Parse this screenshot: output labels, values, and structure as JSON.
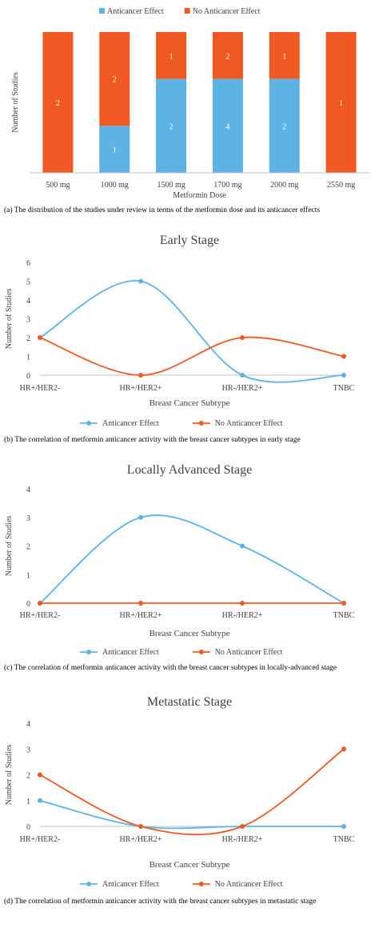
{
  "colors": {
    "anticancer": "#5DB4E4",
    "no_anticancer": "#F05A22",
    "axis": "#BFBFBF",
    "text": "#404040"
  },
  "chart_data": [
    {
      "type": "bar",
      "stacked": true,
      "legend_position": "top",
      "xlabel": "Metformin Dose",
      "ylabel": "Number of Studies",
      "categories": [
        "500 mg",
        "1000 mg",
        "1500 mg",
        "1700 mg",
        "2000 mg",
        "2550 mg"
      ],
      "series": [
        {
          "name": "Anticancer Effect",
          "values": [
            0,
            1,
            2,
            4,
            2,
            0
          ]
        },
        {
          "name": "No Anticancer Effect",
          "values": [
            2,
            2,
            1,
            2,
            1,
            1
          ]
        }
      ],
      "caption": "(a) The distribution of the studies under review in terms of the metformin dose and its anticancer effects"
    },
    {
      "type": "line",
      "smooth": true,
      "title": "Early Stage",
      "xlabel": "Breast Cancer Subtype",
      "ylabel": "Number of Studies",
      "ylim": [
        0,
        6
      ],
      "yticks": [
        0,
        1,
        2,
        3,
        4,
        5,
        6
      ],
      "grid": false,
      "legend_position": "bottom",
      "categories": [
        "HR+/HER2-",
        "HR+/HER2+",
        "HR-/HER2+",
        "TNBC"
      ],
      "series": [
        {
          "name": "Anticancer Effect",
          "values": [
            2,
            5,
            0,
            0
          ]
        },
        {
          "name": "No Anticancer Effect",
          "values": [
            2,
            0,
            2,
            1
          ]
        }
      ],
      "caption": "(b) The correlation of metformin anticancer activity with the breast cancer subtypes in early stage"
    },
    {
      "type": "line",
      "smooth": true,
      "title": "Locally Advanced Stage",
      "xlabel": "Breast Cancer Subtype",
      "ylabel": "Number of Studies",
      "ylim": [
        0,
        4
      ],
      "yticks": [
        0,
        1,
        2,
        3,
        4
      ],
      "grid": false,
      "legend_position": "bottom",
      "categories": [
        "HR+/HER2-",
        "HR+/HER2+",
        "HR-/HER2+",
        "TNBC"
      ],
      "series": [
        {
          "name": "Anticancer Effect",
          "values": [
            0,
            3,
            2,
            0
          ]
        },
        {
          "name": "No Anticancer Effect",
          "values": [
            0,
            0,
            0,
            0
          ]
        }
      ],
      "caption": "(c) The correlation of metformin anticancer activity with the breast cancer subtypes in locally-advanced stage"
    },
    {
      "type": "line",
      "smooth": true,
      "title": "Metastatic Stage",
      "xlabel": "Breast Cancer Subtype",
      "ylabel": "Number of Studies",
      "ylim": [
        0,
        4
      ],
      "yticks": [
        0,
        1,
        2,
        3,
        4
      ],
      "grid": false,
      "legend_position": "bottom",
      "categories": [
        "HR+/HER2-",
        "HR+/HER2+",
        "HR-/HER2+",
        "TNBC"
      ],
      "series": [
        {
          "name": "Anticancer Effect",
          "values": [
            1,
            0,
            0,
            0
          ]
        },
        {
          "name": "No Anticancer Effect",
          "values": [
            2,
            0,
            0,
            3
          ]
        }
      ],
      "caption": "(d) The correlation of metformin anticancer activity with the breast cancer subtypes in metastatic stage"
    }
  ]
}
